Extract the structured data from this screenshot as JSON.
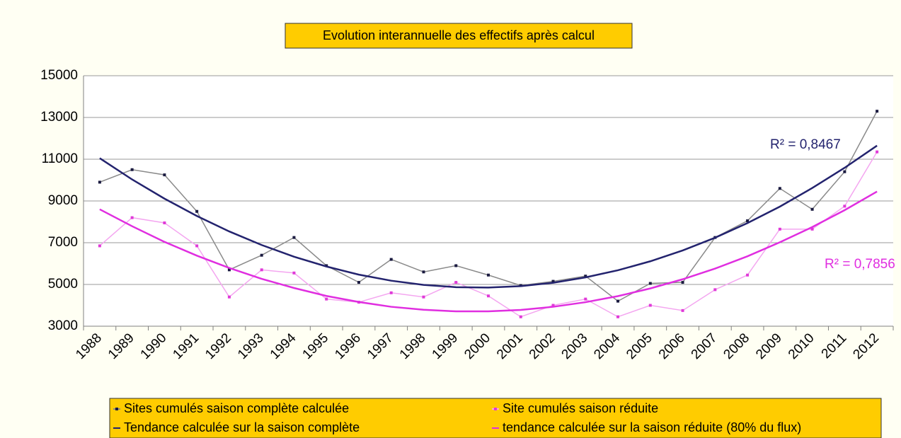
{
  "chart_data": {
    "type": "line",
    "title": "Evolution interannuelle des effectifs après calcul",
    "categories": [
      "1988",
      "1989",
      "1990",
      "1991",
      "1992",
      "1993",
      "1994",
      "1995",
      "1996",
      "1997",
      "1998",
      "1999",
      "2000",
      "2001",
      "2002",
      "2003",
      "2004",
      "2005",
      "2006",
      "2007",
      "2008",
      "2009",
      "2010",
      "2011",
      "2012"
    ],
    "series": [
      {
        "name": "Sites cumulés saison complète calculée",
        "color": "#8a8a8a",
        "marker_color": "#1a1a40",
        "markers": true,
        "values": [
          9900,
          10500,
          10250,
          8500,
          5700,
          6400,
          7250,
          5900,
          5100,
          6200,
          5600,
          5900,
          5450,
          4950,
          5150,
          5400,
          4200,
          5050,
          5100,
          7250,
          8050,
          9600,
          8600,
          10400,
          13300
        ]
      },
      {
        "name": "Site cumulés saison réduite",
        "color": "#f4a6f0",
        "marker_color": "#e03ad8",
        "markers": true,
        "values": [
          6850,
          8200,
          7950,
          6850,
          4400,
          5700,
          5550,
          4300,
          4150,
          4600,
          4400,
          5100,
          4450,
          3450,
          4000,
          4300,
          3450,
          4000,
          3750,
          4750,
          5450,
          7650,
          7650,
          8750,
          11350
        ]
      },
      {
        "name": "Tendance calculée sur la saison complète",
        "color": "#23236e",
        "markers": false,
        "values": [
          11050,
          10030,
          9110,
          8280,
          7540,
          6890,
          6330,
          5860,
          5470,
          5180,
          4980,
          4870,
          4850,
          4920,
          5080,
          5340,
          5680,
          6110,
          6630,
          7240,
          7940,
          8730,
          9620,
          10590,
          11650
        ]
      },
      {
        "name": "tendance calculée sur la saison réduite (80% du flux)",
        "color": "#e02ee0",
        "markers": false,
        "values": [
          8600,
          7790,
          7040,
          6380,
          5790,
          5270,
          4830,
          4450,
          4160,
          3930,
          3790,
          3710,
          3710,
          3780,
          3930,
          4150,
          4440,
          4810,
          5250,
          5760,
          6350,
          7020,
          7750,
          8560,
          9450
        ]
      }
    ],
    "annotations": [
      "R² = 0,8467",
      "R² = 0,7856"
    ],
    "ylim": [
      3000,
      15000
    ],
    "yticks": [
      3000,
      5000,
      7000,
      9000,
      11000,
      13000,
      15000
    ],
    "grid": true
  }
}
